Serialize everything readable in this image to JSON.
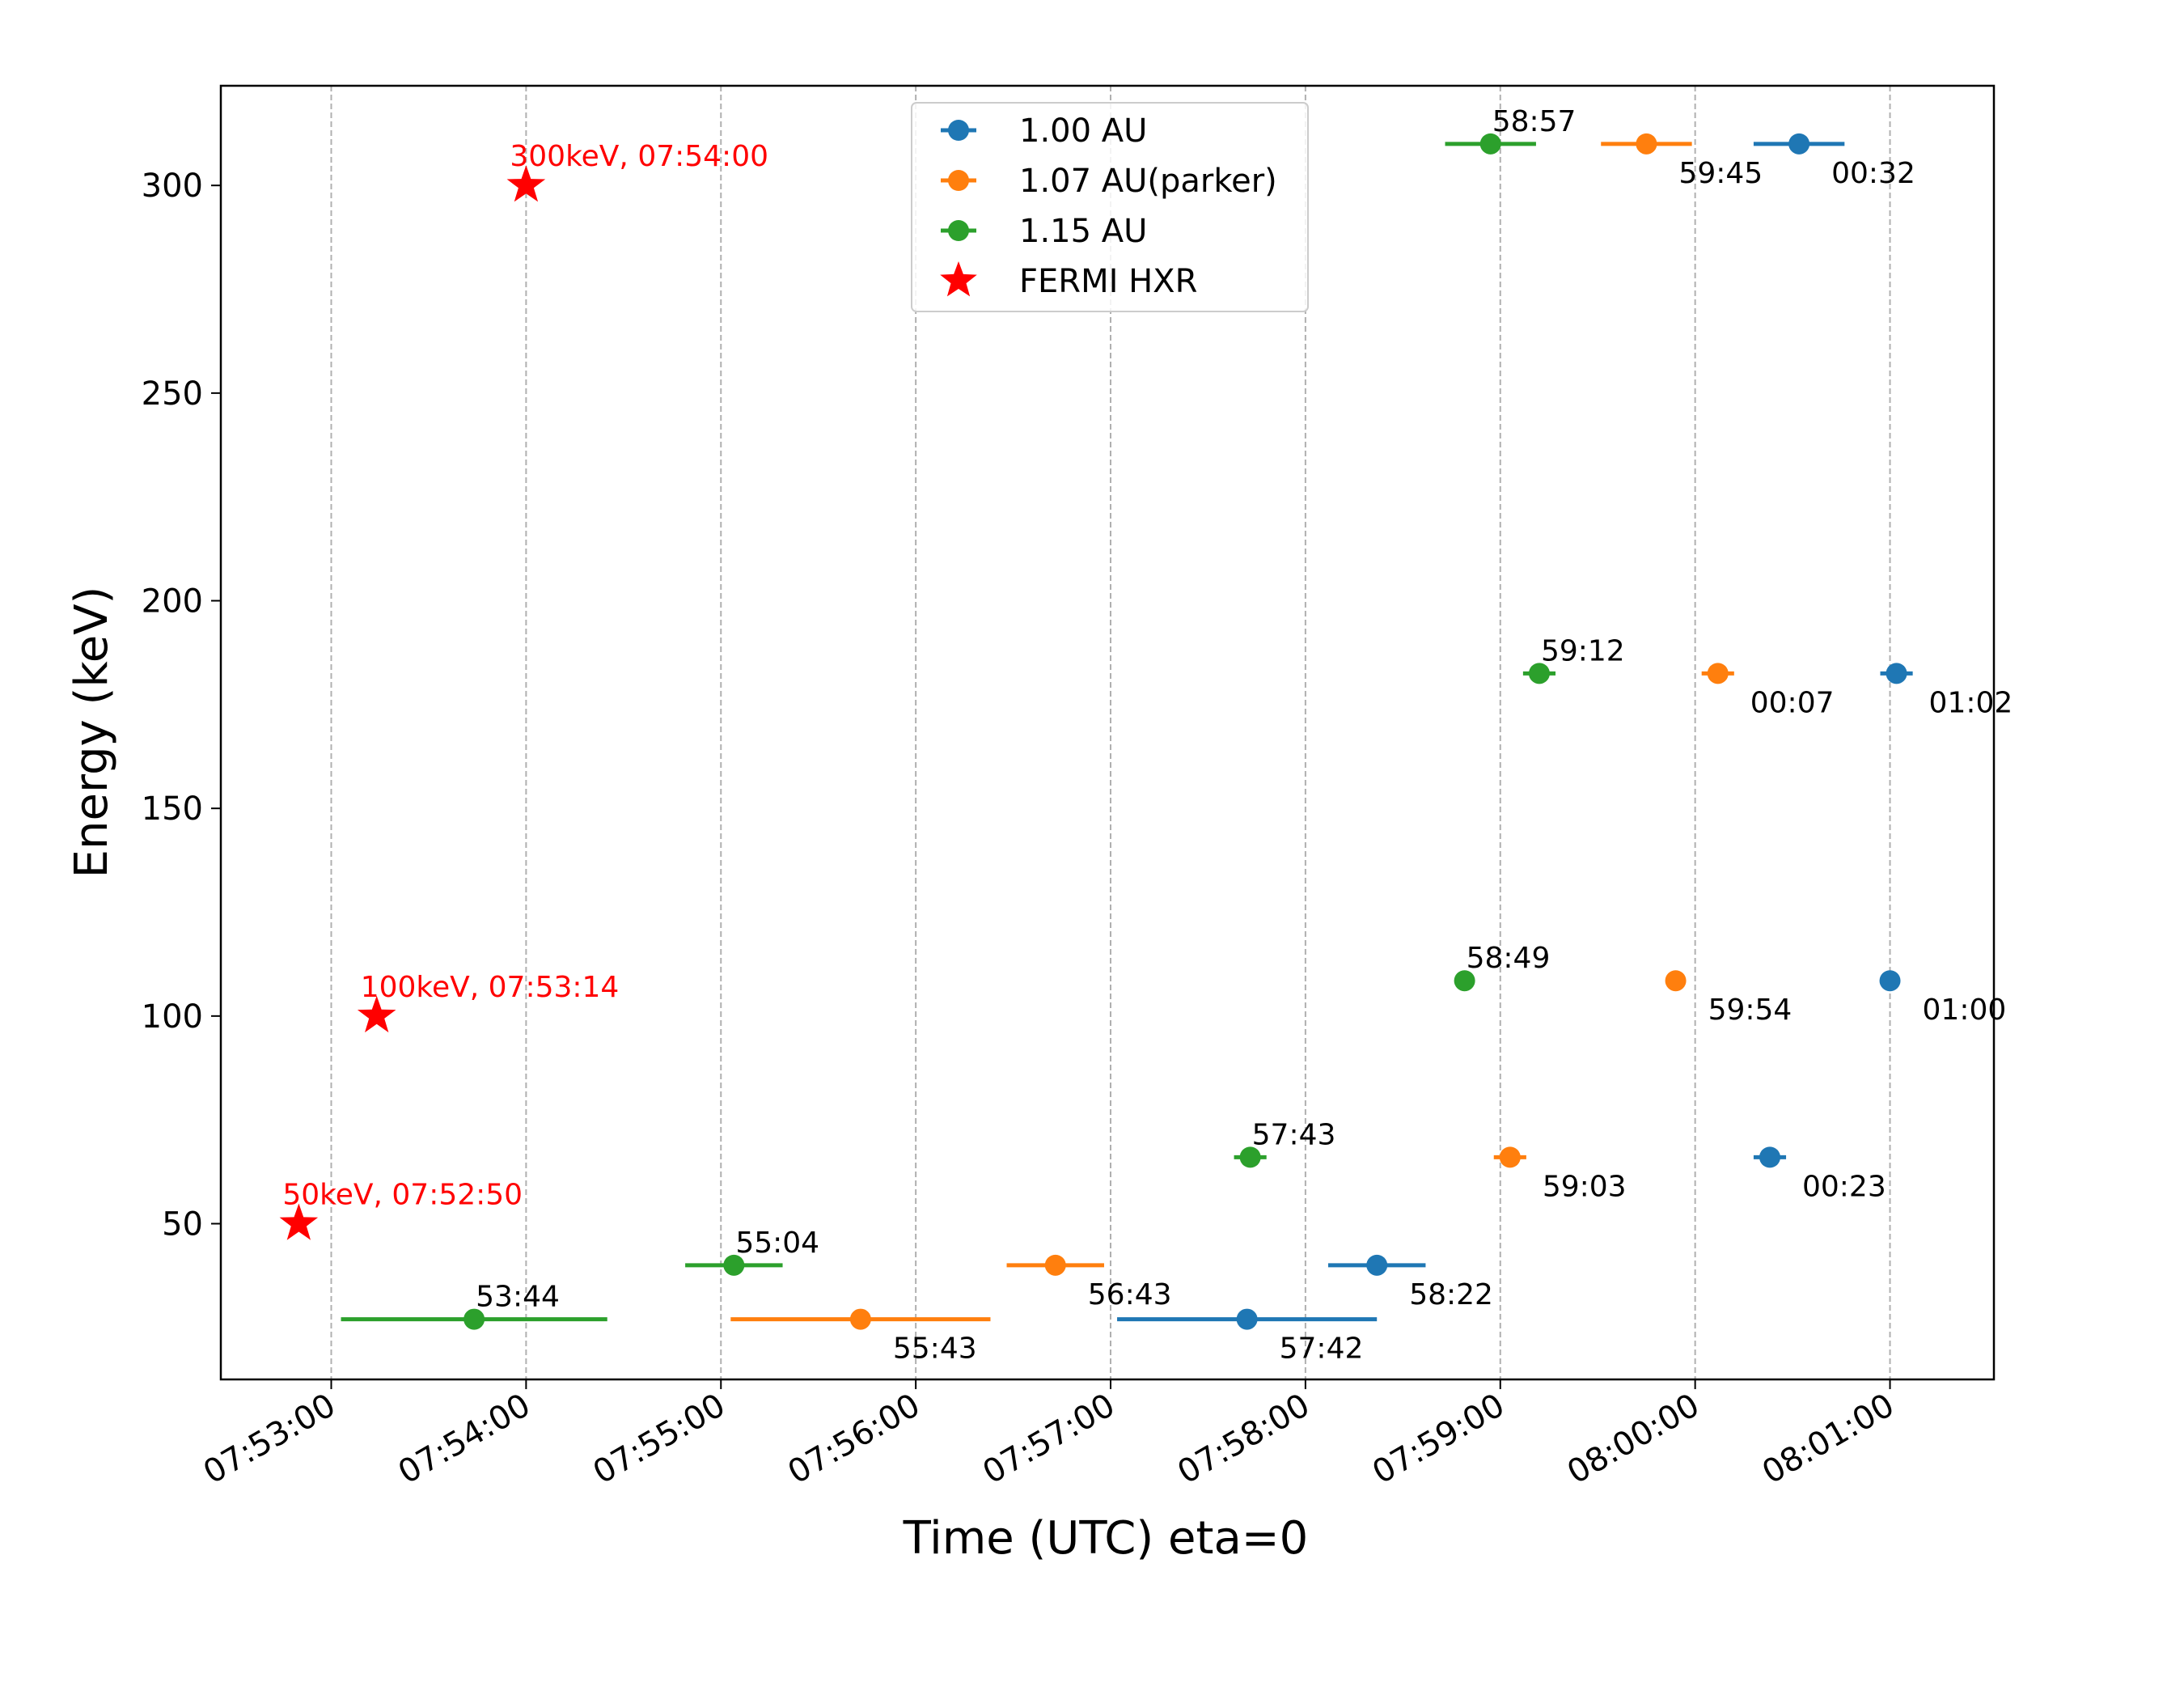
{
  "chart_data": {
    "type": "scatter",
    "title": "",
    "xlabel": "Time (UTC) eta=0",
    "ylabel": "Energy (keV)",
    "xlim": [
      "07:52:26",
      "08:01:32"
    ],
    "ylim": [
      12.5,
      324
    ],
    "grid": "vertical dashed at x ticks",
    "legend_position": "top-center",
    "x_ticks": [
      "07:53:00",
      "07:54:00",
      "07:55:00",
      "07:56:00",
      "07:57:00",
      "07:58:00",
      "07:59:00",
      "08:00:00",
      "08:01:00"
    ],
    "y_ticks": [
      50,
      100,
      150,
      200,
      250,
      300
    ],
    "series": [
      {
        "name": "1.00 AU",
        "color": "#1f77b4",
        "marker": "circle",
        "points": [
          {
            "x": "07:57:42",
            "y": 27,
            "xerr_minus": 40,
            "xerr_plus": 40,
            "label": "57:42",
            "label_pos": "below-right"
          },
          {
            "x": "07:58:22",
            "y": 40,
            "xerr_minus": 15,
            "xerr_plus": 15,
            "label": "58:22",
            "label_pos": "below-right"
          },
          {
            "x": "08:00:23",
            "y": 66,
            "xerr_minus": 5,
            "xerr_plus": 5,
            "label": "00:23",
            "label_pos": "below-right"
          },
          {
            "x": "08:01:00",
            "y": 108.5,
            "xerr_minus": 0,
            "xerr_plus": 0,
            "label": "01:00",
            "label_pos": "below-right"
          },
          {
            "x": "08:01:02",
            "y": 182.5,
            "xerr_minus": 5,
            "xerr_plus": 5,
            "label": "01:02",
            "label_pos": "below-right"
          },
          {
            "x": "08:00:32",
            "y": 310,
            "xerr_minus": 14,
            "xerr_plus": 14,
            "label": "00:32",
            "label_pos": "below-right"
          }
        ]
      },
      {
        "name": "1.07 AU(parker)",
        "color": "#ff7f0e",
        "marker": "circle",
        "points": [
          {
            "x": "07:55:43",
            "y": 27,
            "xerr_minus": 40,
            "xerr_plus": 40,
            "label": "55:43",
            "label_pos": "below-right"
          },
          {
            "x": "07:56:43",
            "y": 40,
            "xerr_minus": 15,
            "xerr_plus": 15,
            "label": "56:43",
            "label_pos": "below-right"
          },
          {
            "x": "07:59:03",
            "y": 66,
            "xerr_minus": 5,
            "xerr_plus": 5,
            "label": "59:03",
            "label_pos": "below-right"
          },
          {
            "x": "07:59:54",
            "y": 108.5,
            "xerr_minus": 0,
            "xerr_plus": 0,
            "label": "59:54",
            "label_pos": "below-right"
          },
          {
            "x": "08:00:07",
            "y": 182.5,
            "xerr_minus": 5,
            "xerr_plus": 5,
            "label": "00:07",
            "label_pos": "below-right"
          },
          {
            "x": "07:59:45",
            "y": 310,
            "xerr_minus": 14,
            "xerr_plus": 14,
            "label": "59:45",
            "label_pos": "below-right"
          }
        ]
      },
      {
        "name": "1.15 AU",
        "color": "#2ca02c",
        "marker": "circle",
        "points": [
          {
            "x": "07:53:44",
            "y": 27,
            "xerr_minus": 41,
            "xerr_plus": 41,
            "label": "53:44",
            "label_pos": "above"
          },
          {
            "x": "07:55:04",
            "y": 40,
            "xerr_minus": 15,
            "xerr_plus": 15,
            "label": "55:04",
            "label_pos": "above"
          },
          {
            "x": "07:57:43",
            "y": 66,
            "xerr_minus": 5,
            "xerr_plus": 5,
            "label": "57:43",
            "label_pos": "above"
          },
          {
            "x": "07:58:49",
            "y": 108.5,
            "xerr_minus": 0,
            "xerr_plus": 0,
            "label": "58:49",
            "label_pos": "above"
          },
          {
            "x": "07:59:12",
            "y": 182.5,
            "xerr_minus": 5,
            "xerr_plus": 5,
            "label": "59:12",
            "label_pos": "above"
          },
          {
            "x": "07:58:57",
            "y": 310,
            "xerr_minus": 14,
            "xerr_plus": 14,
            "label": "58:57",
            "label_pos": "above"
          }
        ]
      },
      {
        "name": "FERMI HXR",
        "color": "#ff0000",
        "marker": "star",
        "points": [
          {
            "x": "07:52:50",
            "y": 50,
            "label": "50keV, 07:52:50",
            "label_pos": "above"
          },
          {
            "x": "07:53:14",
            "y": 100,
            "label": "100keV, 07:53:14",
            "label_pos": "above"
          },
          {
            "x": "07:54:00",
            "y": 300,
            "label": "300keV, 07:54:00",
            "label_pos": "above"
          }
        ]
      }
    ]
  }
}
